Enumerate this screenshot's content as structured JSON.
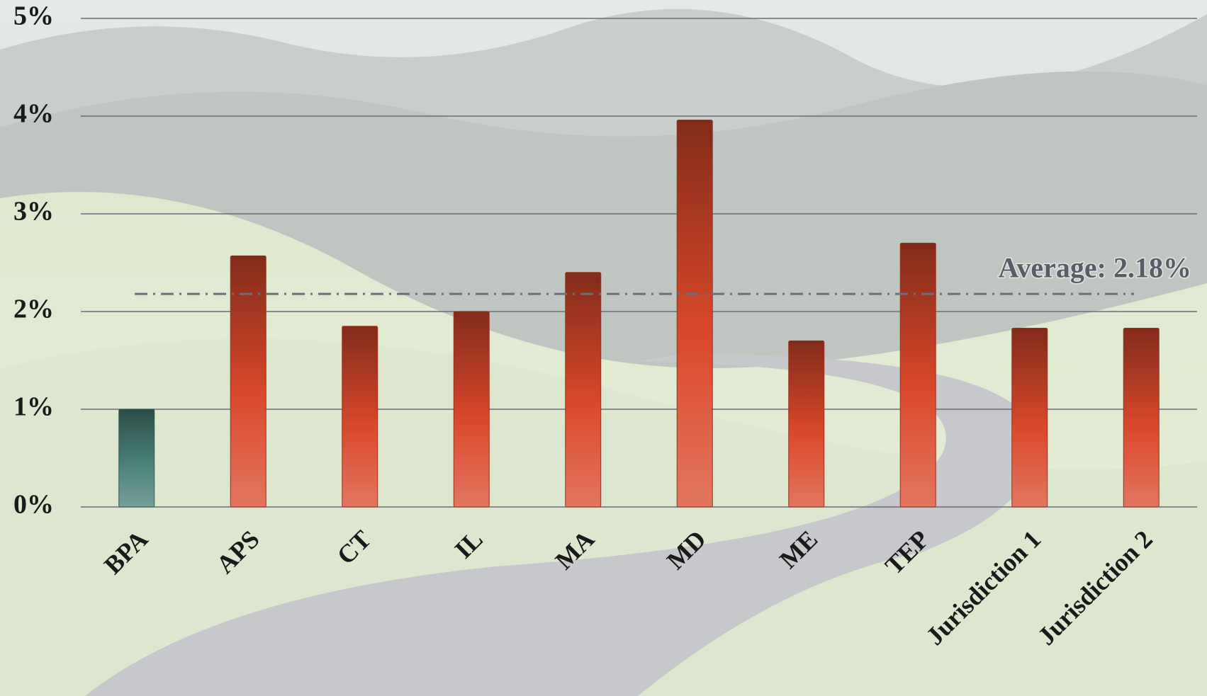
{
  "chart_data": {
    "type": "bar",
    "categories": [
      "BPA",
      "APS",
      "CT",
      "IL",
      "MA",
      "MD",
      "ME",
      "TEP",
      "Jurisdiction 1",
      "Jurisdiction 2"
    ],
    "values": [
      1.0,
      2.57,
      1.85,
      2.0,
      2.4,
      3.96,
      1.7,
      2.7,
      1.83,
      1.83
    ],
    "colors": [
      "#4a8077",
      "#d9482b",
      "#d9482b",
      "#d9482b",
      "#d9482b",
      "#d9482b",
      "#d9482b",
      "#d9482b",
      "#d9482b",
      "#d9482b"
    ],
    "ylim": [
      0,
      5
    ],
    "yticks": [
      {
        "value": 0,
        "label": "0%"
      },
      {
        "value": 1,
        "label": "1%"
      },
      {
        "value": 2,
        "label": "2%"
      },
      {
        "value": 3,
        "label": "3%"
      },
      {
        "value": 4,
        "label": "4%"
      },
      {
        "value": 5,
        "label": "5%"
      }
    ],
    "grid": true,
    "average": {
      "value": 2.18,
      "label": "Average: 2.18%"
    }
  }
}
